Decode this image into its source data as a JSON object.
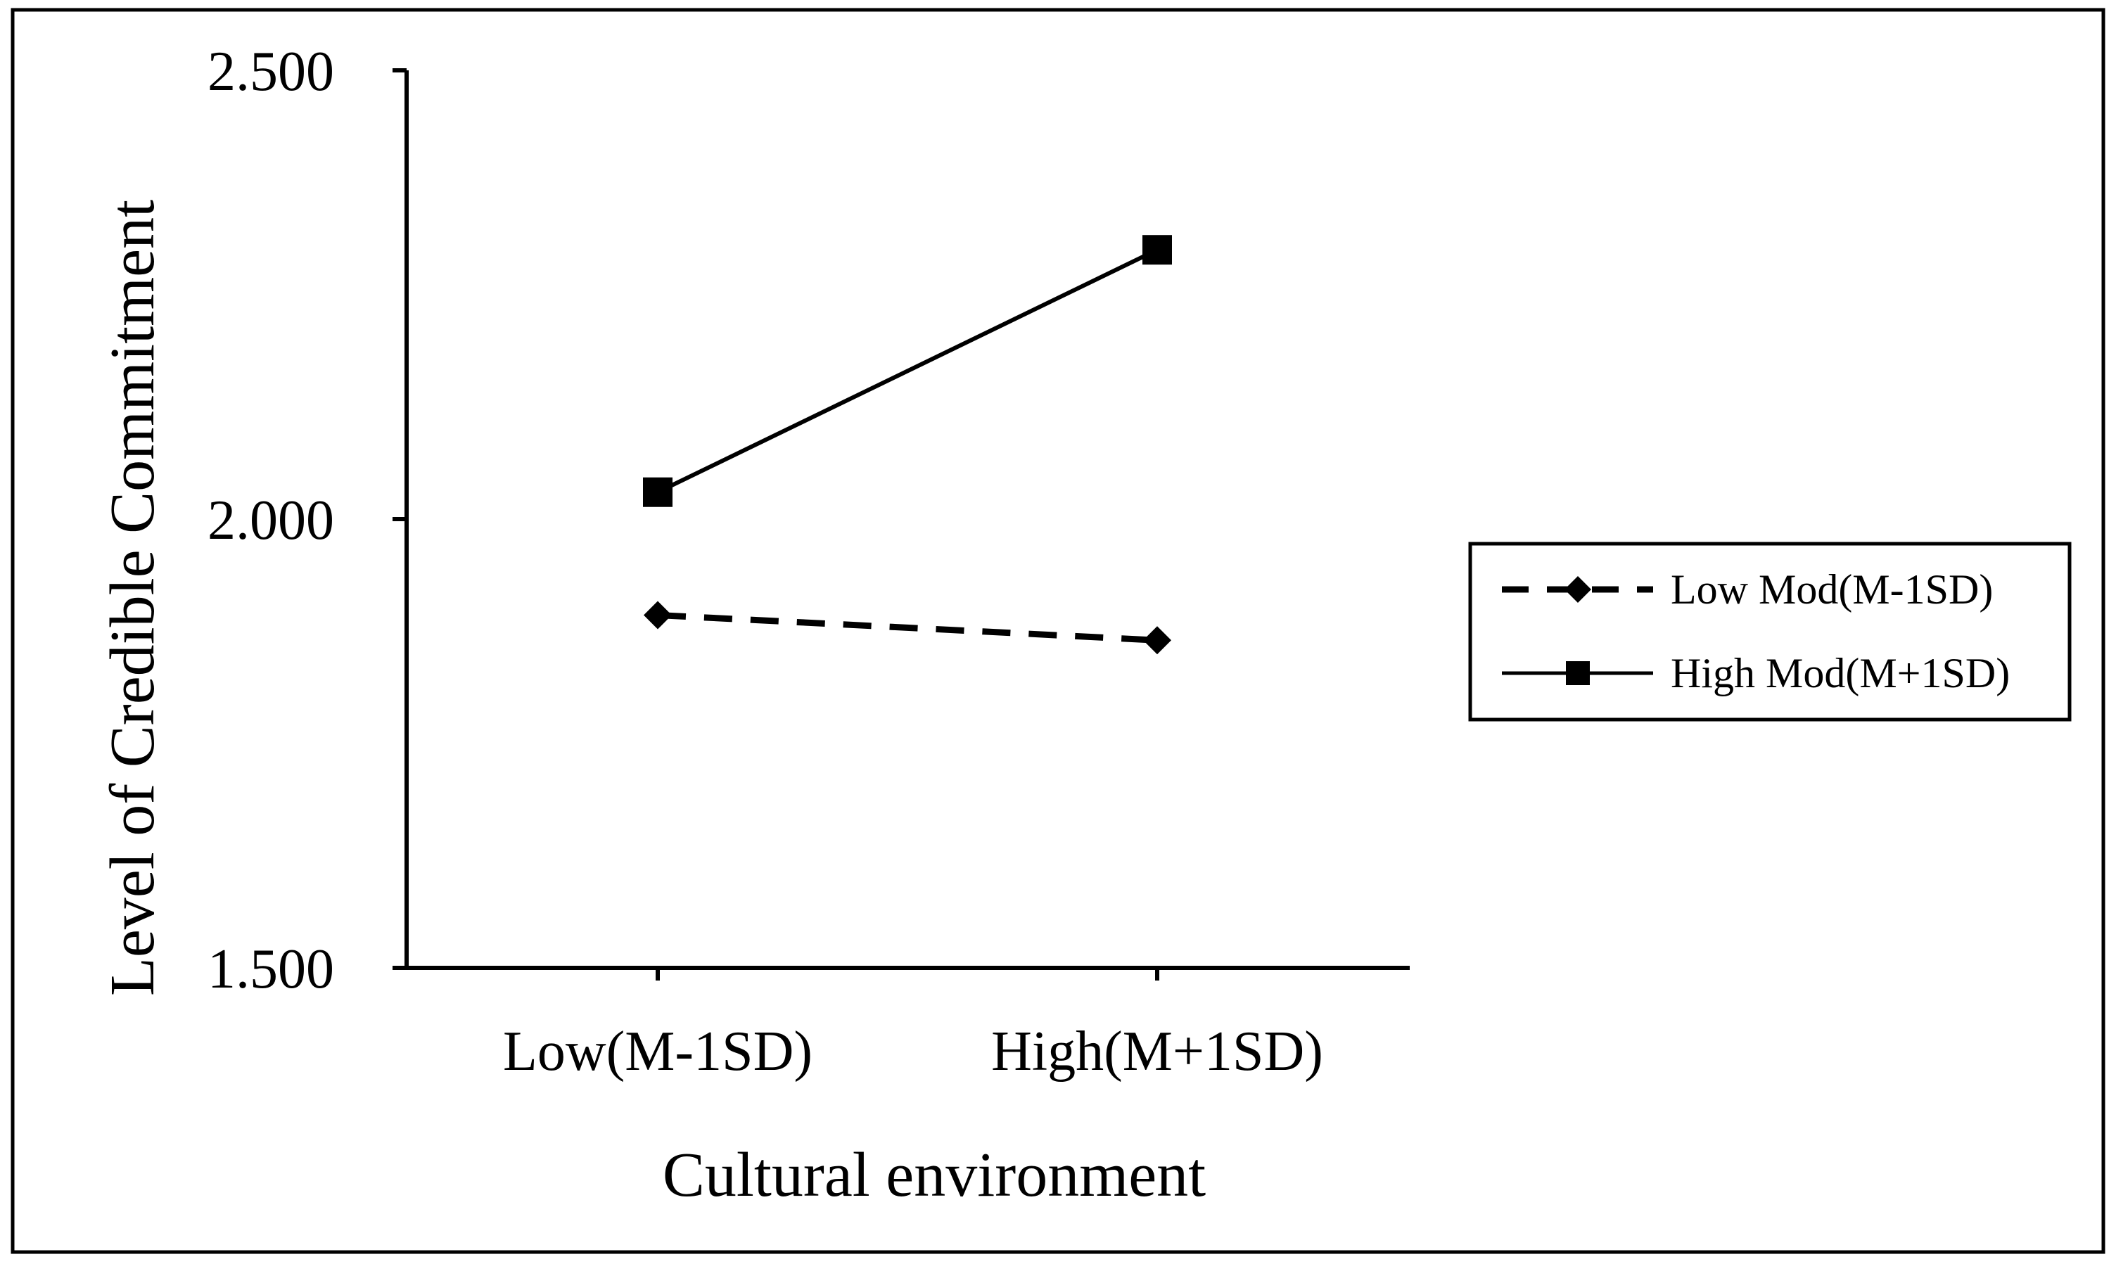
{
  "chart_data": {
    "type": "line",
    "title": "",
    "xlabel": "Cultural environment",
    "ylabel": "Level of Credible Commitment",
    "categories": [
      "Low(M-1SD)",
      "High(M+1SD)"
    ],
    "ylim": [
      1.5,
      2.5
    ],
    "yticks": [
      1.5,
      2.0,
      2.5
    ],
    "ytick_labels": [
      "1.500",
      "2.000",
      "2.500"
    ],
    "grid": false,
    "legend_position": "right",
    "series": [
      {
        "name": "Low Mod(M-1SD)",
        "values": [
          1.893,
          1.865
        ],
        "line_style": "dashed",
        "marker": "diamond",
        "color": "#000000"
      },
      {
        "name": "High Mod(M+1SD)",
        "values": [
          2.03,
          2.3
        ],
        "line_style": "solid",
        "marker": "square",
        "color": "#000000"
      }
    ]
  }
}
